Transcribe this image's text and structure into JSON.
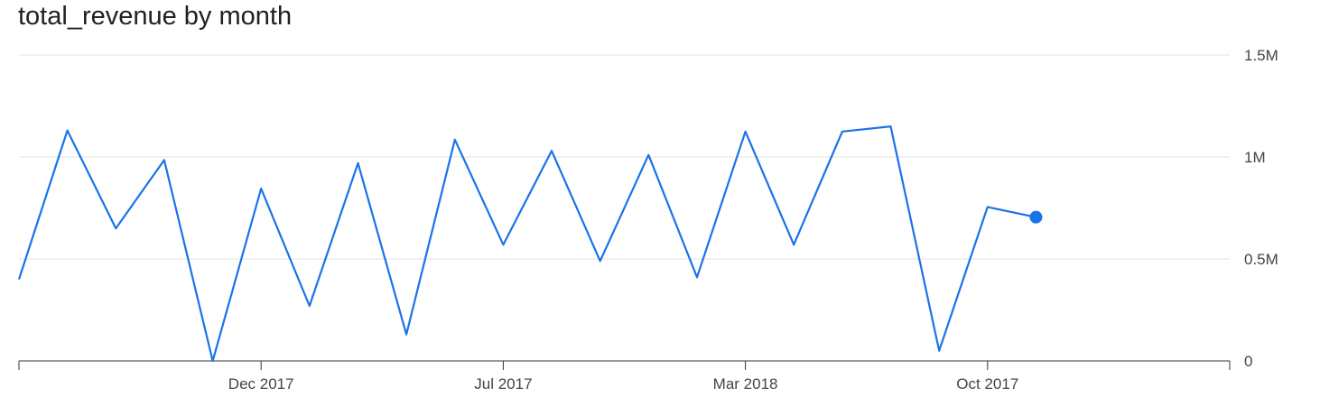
{
  "chart_data": {
    "type": "line",
    "title": "total_revenue by month",
    "xlabel": "",
    "ylabel": "",
    "ylim": [
      0,
      1500000
    ],
    "y_ticks": [
      {
        "value": 0,
        "label": "0"
      },
      {
        "value": 500000,
        "label": "0.5M"
      },
      {
        "value": 1000000,
        "label": "1M"
      },
      {
        "value": 1500000,
        "label": "1.5M"
      }
    ],
    "x_ticks": [
      {
        "index": 5,
        "label": "Dec 2017"
      },
      {
        "index": 10,
        "label": "Jul 2017"
      },
      {
        "index": 15,
        "label": "Mar 2018"
      },
      {
        "index": 20,
        "label": "Oct 2017"
      }
    ],
    "x_range": [
      0,
      25
    ],
    "grid": true,
    "series": [
      {
        "color": "#1a73e8",
        "values": [
          400000,
          1130000,
          650000,
          985000,
          0,
          845000,
          270000,
          970000,
          130000,
          1085000,
          570000,
          1030000,
          490000,
          1010000,
          410000,
          1125000,
          570000,
          1125000,
          1150000,
          50000,
          755000,
          705000
        ],
        "highlight_last": true
      }
    ]
  }
}
